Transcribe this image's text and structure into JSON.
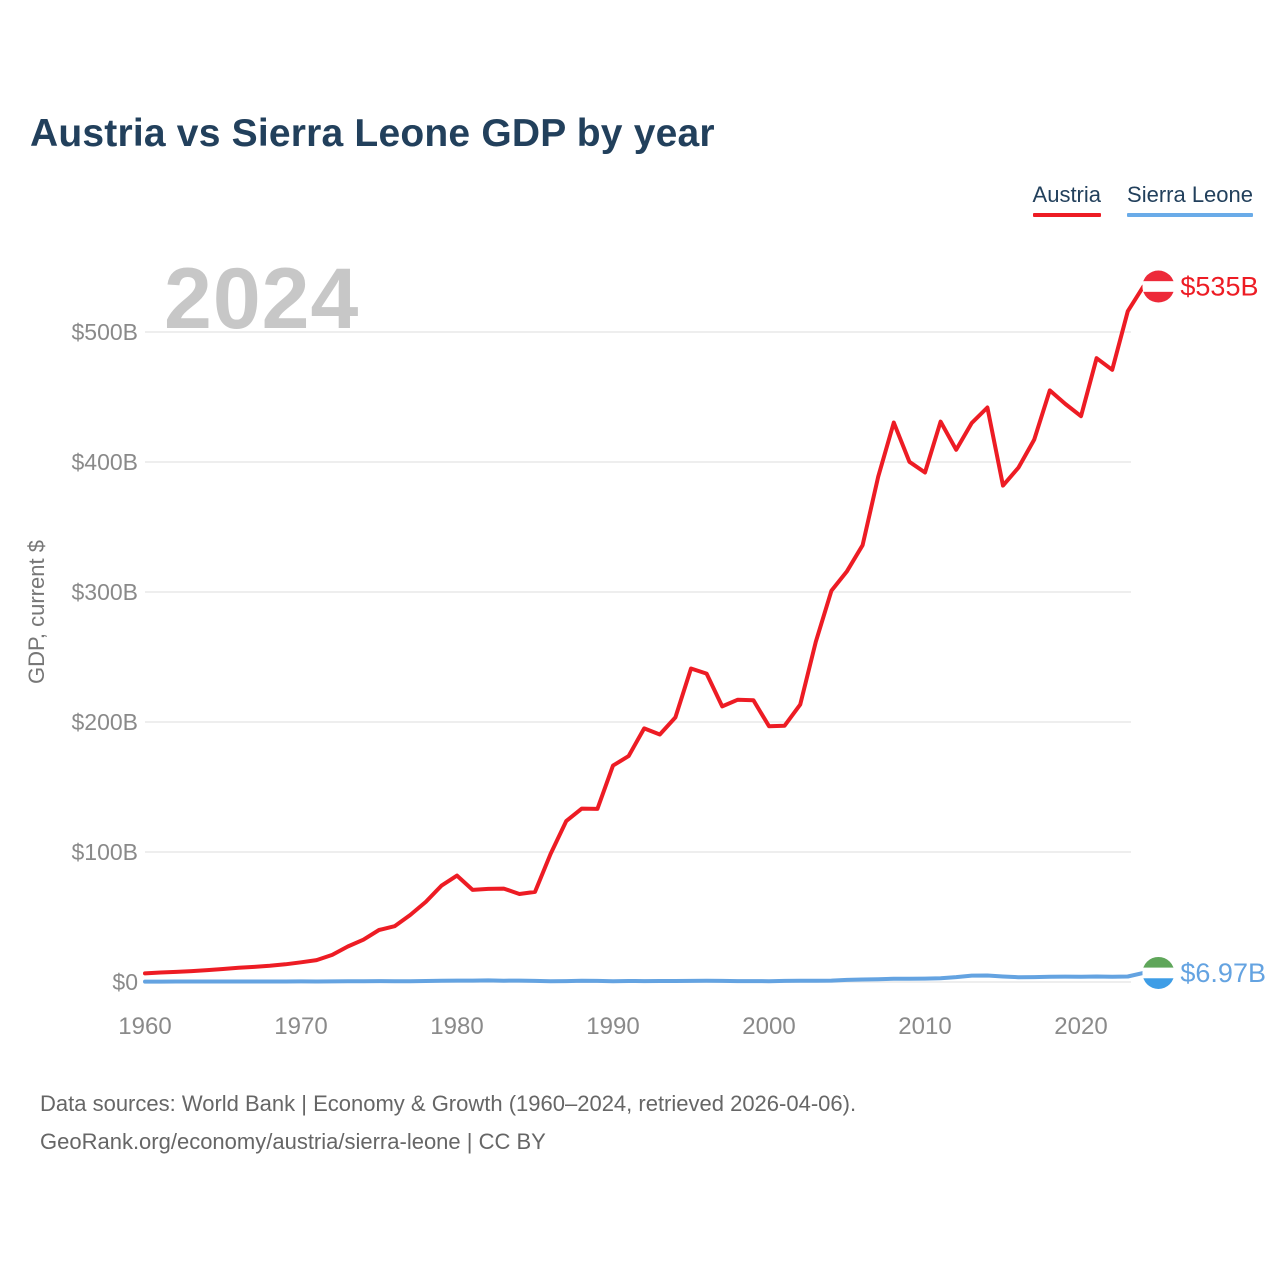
{
  "title": "Austria vs Sierra Leone GDP by year",
  "watermark": "2024",
  "legend": [
    {
      "label": "Austria",
      "color": "#ed1c24"
    },
    {
      "label": "Sierra Leone",
      "color": "#6aabe8"
    }
  ],
  "footer": {
    "line1": "Data sources: World Bank | Economy & Growth (1960–2024, retrieved 2026-04-06).",
    "line2": "GeoRank.org/economy/austria/sierra-leone | CC BY"
  },
  "colors": {
    "title_navy": "#22405c",
    "grid": "#e8e8e8",
    "tick_gray": "#8a8a8a",
    "axis_title_gray": "#777777",
    "watermark_gray": "#c7c7c7"
  },
  "chart_data": {
    "type": "line",
    "title": "Austria vs Sierra Leone GDP by year",
    "xlabel": "",
    "ylabel": "GDP, current $",
    "units": "billions of current US$",
    "x_start": 1960,
    "x_end": 2024,
    "xlim": [
      1960,
      2024
    ],
    "ylim": [
      0,
      550
    ],
    "grid": "horizontal",
    "legend_position": "top-right",
    "x_ticks": [
      1960,
      1970,
      1980,
      1990,
      2000,
      2010,
      2020
    ],
    "y_ticks": [
      {
        "value": 0,
        "label": "$0"
      },
      {
        "value": 100,
        "label": "$100B"
      },
      {
        "value": 200,
        "label": "$200B"
      },
      {
        "value": 300,
        "label": "$300B"
      },
      {
        "value": 400,
        "label": "$400B"
      },
      {
        "value": 500,
        "label": "$500B"
      }
    ],
    "series": [
      {
        "name": "Austria",
        "color": "#ed1c24",
        "end_label": "$535B",
        "end_value": 535,
        "flag": "austria",
        "flag_colors": [
          "#ed2939",
          "#ffffff",
          "#ed2939"
        ],
        "values": [
          6.59,
          7.31,
          7.76,
          8.37,
          9.16,
          9.99,
          10.89,
          11.58,
          12.44,
          13.58,
          15.15,
          16.84,
          20.86,
          27.29,
          32.54,
          40.03,
          42.92,
          51.55,
          61.61,
          74.11,
          81.86,
          70.87,
          71.6,
          71.86,
          67.71,
          69.32,
          98.55,
          123.76,
          133.42,
          133.13,
          166.46,
          173.79,
          195.08,
          190.38,
          203.54,
          241.13,
          237.25,
          212.0,
          217.19,
          216.75,
          196.8,
          197.18,
          213.38,
          261.7,
          300.9,
          315.97,
          335.99,
          388.69,
          430.29,
          400.17,
          391.89,
          431.04,
          409.4,
          430.07,
          441.89,
          381.82,
          395.87,
          417.26,
          455.09,
          444.62,
          435.23,
          479.82,
          470.94,
          516.03,
          535.0
        ]
      },
      {
        "name": "Sierra Leone",
        "color": "#64a3e1",
        "end_label": "$6.97B",
        "end_value": 6.97,
        "flag": "sierra-leone",
        "flag_colors": [
          "#5fa65a",
          "#ffffff",
          "#3e9de6"
        ],
        "values": [
          0.32,
          0.34,
          0.35,
          0.36,
          0.38,
          0.4,
          0.38,
          0.37,
          0.35,
          0.4,
          0.43,
          0.42,
          0.46,
          0.54,
          0.62,
          0.68,
          0.55,
          0.58,
          0.77,
          0.98,
          1.1,
          1.11,
          1.25,
          0.98,
          1.09,
          0.87,
          0.51,
          0.68,
          0.93,
          0.88,
          0.65,
          0.78,
          0.68,
          0.77,
          0.79,
          0.87,
          0.94,
          0.85,
          0.67,
          0.67,
          0.64,
          0.81,
          0.93,
          0.99,
          1.08,
          1.63,
          1.89,
          2.16,
          2.5,
          2.45,
          2.58,
          2.94,
          3.77,
          4.92,
          5.02,
          4.22,
          3.67,
          3.74,
          4.09,
          4.12,
          4.06,
          4.25,
          3.97,
          4.21,
          6.97
        ]
      }
    ]
  }
}
